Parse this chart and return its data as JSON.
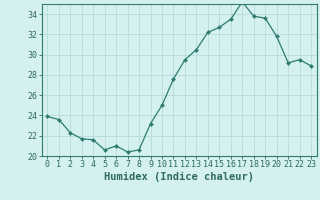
{
  "x": [
    0,
    1,
    2,
    3,
    4,
    5,
    6,
    7,
    8,
    9,
    10,
    11,
    12,
    13,
    14,
    15,
    16,
    17,
    18,
    19,
    20,
    21,
    22,
    23
  ],
  "y": [
    23.9,
    23.6,
    22.3,
    21.7,
    21.6,
    20.6,
    21.0,
    20.4,
    20.6,
    23.2,
    25.0,
    27.6,
    29.5,
    30.5,
    32.2,
    32.7,
    33.5,
    35.2,
    33.8,
    33.6,
    31.8,
    29.2,
    29.5,
    28.9
  ],
  "line_color": "#2e7d6e",
  "marker_color": "#2e7d6e",
  "bg_color": "#d4f0f0",
  "grid_color": "#b8dada",
  "xlabel": "Humidex (Indice chaleur)",
  "ylim": [
    20,
    35
  ],
  "xlim": [
    -0.5,
    23.5
  ],
  "yticks": [
    20,
    22,
    24,
    26,
    28,
    30,
    32,
    34
  ],
  "xticks": [
    0,
    1,
    2,
    3,
    4,
    5,
    6,
    7,
    8,
    9,
    10,
    11,
    12,
    13,
    14,
    15,
    16,
    17,
    18,
    19,
    20,
    21,
    22,
    23
  ],
  "tick_fontsize": 6,
  "xlabel_fontsize": 7.5,
  "label_color": "#2e6b5e",
  "spine_color": "#2e7d6e"
}
